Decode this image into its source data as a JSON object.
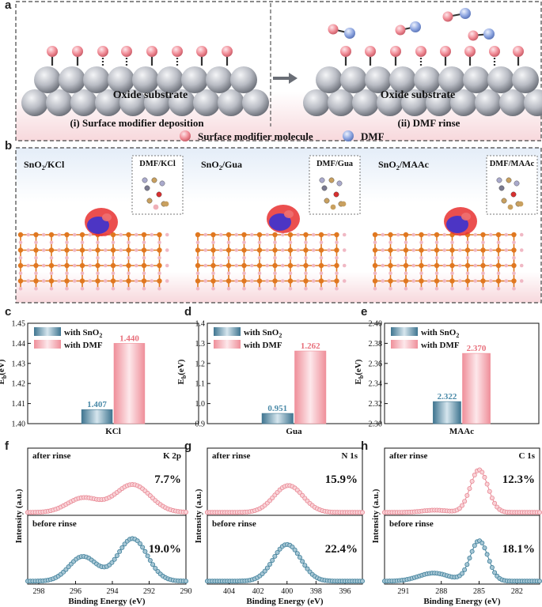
{
  "panel_labels": [
    "a",
    "b",
    "c",
    "d",
    "e",
    "f",
    "g",
    "h"
  ],
  "panel_a": {
    "left_substrate": "Oxide substrate",
    "right_substrate": "Oxide substrate",
    "left_caption": "(i) Surface modifier deposition",
    "right_caption": "(ii) DMF rinse",
    "legend_modifier": "Surface modifier molecule",
    "legend_dmf": "DMF",
    "colors": {
      "modifier": "#f08c96",
      "dmf": "#8ea6e0",
      "substrate": "#b9bcc4",
      "frame": "#555555"
    }
  },
  "panel_b": {
    "tiles": [
      {
        "label_main": "SnO",
        "label_sub": "2",
        "label_rest": "/KCl",
        "inset": "DMF/KCl"
      },
      {
        "label_main": "SnO",
        "label_sub": "2",
        "label_rest": "/Gua",
        "inset": "DMF/Gua"
      },
      {
        "label_main": "SnO",
        "label_sub": "2",
        "label_rest": "/MAAc",
        "inset": "DMF/MAAc"
      }
    ],
    "colors": {
      "lattice": "#e07820",
      "oxygen": "#f0b8c4",
      "iso_red": "#e83030",
      "iso_blue": "#3030d8"
    }
  },
  "bar_legend": {
    "sno2": "with SnO",
    "sno2_sub": "2",
    "dmf": "with DMF"
  },
  "bar_colors": {
    "sno2": "#5b8fa6",
    "dmf": "#f3a3ac",
    "sno2_label": "#4a8aa8",
    "dmf_label": "#e8707c"
  },
  "chart_data": [
    {
      "type": "bar",
      "panel": "c",
      "ylabel_main": "E",
      "ylabel_sub": "b",
      "ylabel_rest": "(eV)",
      "xlabel": "KCl",
      "ylim": [
        1.4,
        1.45
      ],
      "yticks": [
        "1.40",
        "1.41",
        "1.42",
        "1.43",
        "1.44",
        "1.45"
      ],
      "series": [
        {
          "name": "with SnO2",
          "values": [
            1.407
          ],
          "label": "1.407"
        },
        {
          "name": "with DMF",
          "values": [
            1.44
          ],
          "label": "1.440"
        }
      ]
    },
    {
      "type": "bar",
      "panel": "d",
      "ylabel_main": "E",
      "ylabel_sub": "b",
      "ylabel_rest": "(eV)",
      "xlabel": "Gua",
      "ylim": [
        0.9,
        1.4
      ],
      "yticks": [
        "0.9",
        "1.0",
        "1.1",
        "1.2",
        "1.3",
        "1.4"
      ],
      "series": [
        {
          "name": "with SnO2",
          "values": [
            0.951
          ],
          "label": "0.951"
        },
        {
          "name": "with DMF",
          "values": [
            1.262
          ],
          "label": "1.262"
        }
      ]
    },
    {
      "type": "bar",
      "panel": "e",
      "ylabel_main": "E",
      "ylabel_sub": "b",
      "ylabel_rest": "(eV)",
      "xlabel": "MAAc",
      "ylim": [
        2.3,
        2.4
      ],
      "yticks": [
        "2.30",
        "2.32",
        "2.34",
        "2.36",
        "2.38",
        "2.40"
      ],
      "series": [
        {
          "name": "with SnO2",
          "values": [
            2.322
          ],
          "label": "2.322"
        },
        {
          "name": "with DMF",
          "values": [
            2.37
          ],
          "label": "2.370"
        }
      ]
    },
    {
      "type": "scatter",
      "panel": "f",
      "element": "K 2p",
      "xlabel": "Binding Energy (eV)",
      "ylabel": "Intensity (a.u.)",
      "xlim": [
        298.6,
        290.0
      ],
      "xticks": [
        298,
        296,
        294,
        292,
        290
      ],
      "after": {
        "label": "after rinse",
        "percent": "7.7%",
        "peaks": [
          [
            295.6,
            0.32,
            0.85
          ],
          [
            292.9,
            0.62,
            0.95
          ]
        ]
      },
      "before": {
        "label": "before rinse",
        "percent": "19.0%",
        "peaks": [
          [
            295.6,
            0.55,
            0.75
          ],
          [
            292.9,
            0.95,
            0.8
          ]
        ]
      }
    },
    {
      "type": "scatter",
      "panel": "g",
      "element": "N 1s",
      "xlabel": "Binding Energy (eV)",
      "ylabel": "Intensity (a.u.)",
      "xlim": [
        405.5,
        394.8
      ],
      "xticks": [
        404,
        402,
        400,
        398,
        396
      ],
      "after": {
        "label": "after rinse",
        "percent": "15.9%",
        "peaks": [
          [
            399.9,
            0.6,
            1.0
          ]
        ]
      },
      "before": {
        "label": "before rinse",
        "percent": "22.4%",
        "peaks": [
          [
            400.0,
            0.82,
            0.95
          ]
        ]
      }
    },
    {
      "type": "scatter",
      "panel": "h",
      "element": "C 1s",
      "xlabel": "Binding Energy (eV)",
      "ylabel": "Intensity (a.u.)",
      "xlim": [
        292.5,
        280.2
      ],
      "xticks": [
        291,
        288,
        285,
        282
      ],
      "after": {
        "label": "after rinse",
        "percent": "12.3%",
        "peaks": [
          [
            285.0,
            0.95,
            0.7
          ],
          [
            288.5,
            0.05,
            1.0
          ]
        ]
      },
      "before": {
        "label": "before rinse",
        "percent": "18.1%",
        "peaks": [
          [
            285.0,
            0.9,
            0.7
          ],
          [
            288.6,
            0.18,
            1.2
          ]
        ]
      }
    }
  ]
}
